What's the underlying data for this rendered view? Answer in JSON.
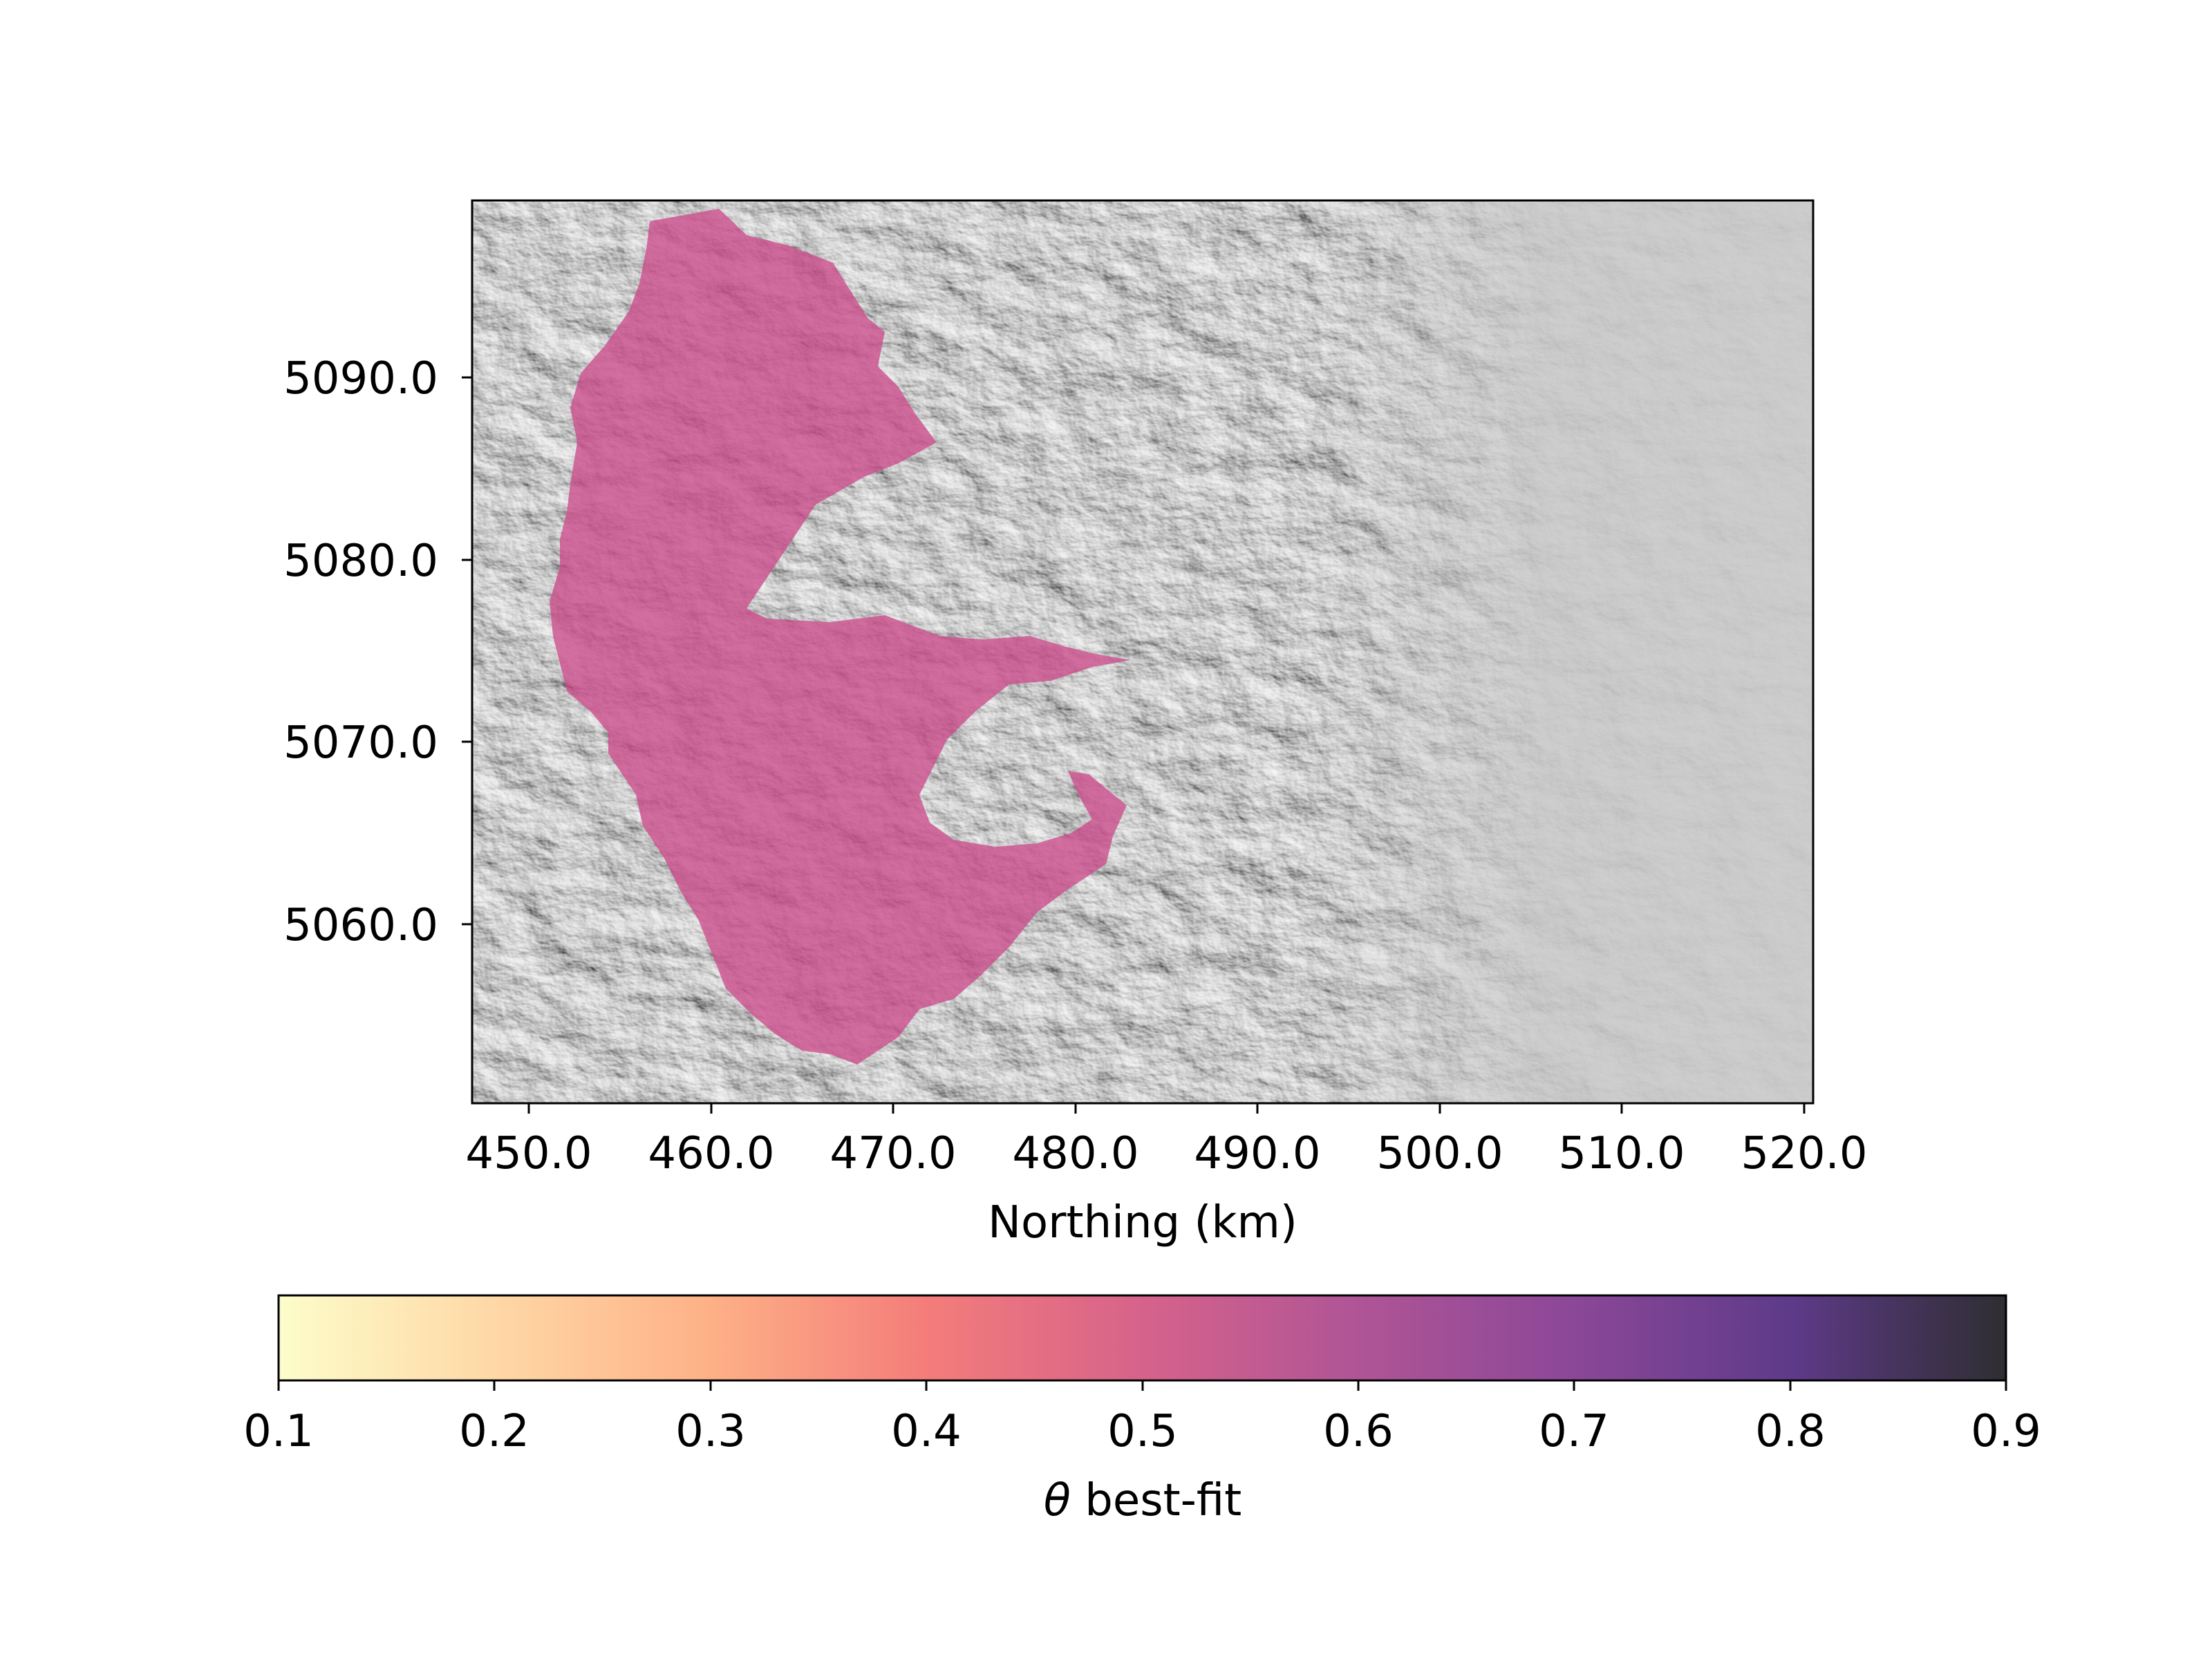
{
  "map": {
    "x_axis": {
      "label": "Northing (km)",
      "ticks": [
        "450.0",
        "460.0",
        "470.0",
        "480.0",
        "490.0",
        "500.0",
        "510.0",
        "520.0"
      ],
      "range": [
        447.0,
        520.5
      ]
    },
    "y_axis": {
      "label": "",
      "ticks": [
        "5090.0",
        "5080.0",
        "5070.0",
        "5060.0"
      ],
      "range": [
        5050.5,
        5100.0
      ]
    },
    "basemap": "grayscale hillshade relief",
    "basin_color": "#cc4c8a",
    "basin_theta": 0.47
  },
  "colorbar": {
    "label_symbol": "θ",
    "label_text": " best-fit",
    "ticks": [
      "0.1",
      "0.2",
      "0.3",
      "0.4",
      "0.5",
      "0.6",
      "0.7",
      "0.8",
      "0.9"
    ],
    "range": [
      0.1,
      0.9
    ],
    "colormap": "magma_r"
  }
}
